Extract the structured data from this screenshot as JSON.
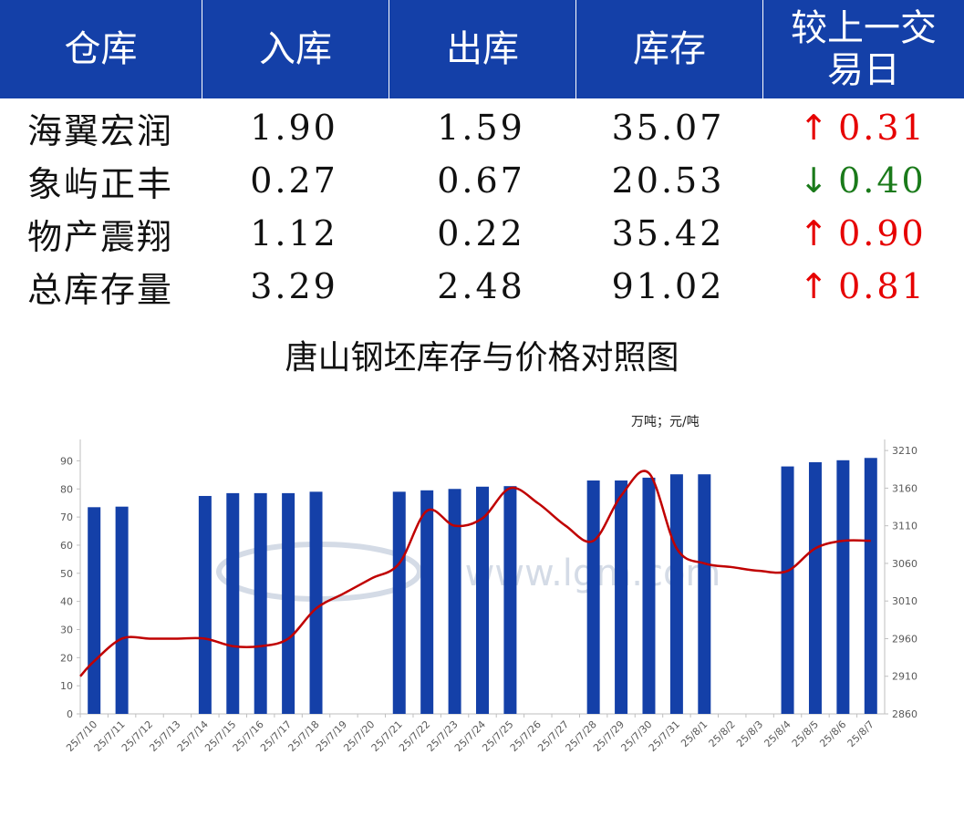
{
  "table": {
    "headers": [
      "仓库",
      "入库",
      "出库",
      "库存",
      "较上一交易日"
    ],
    "header_last_lines": [
      "较上一交",
      "易日"
    ],
    "rows": [
      {
        "name": "海翼宏润",
        "in": "1.90",
        "out": "1.59",
        "stock": "35.07",
        "arrow": "↑",
        "change": "0.31",
        "dir": "up"
      },
      {
        "name": "象屿正丰",
        "in": "0.27",
        "out": "0.67",
        "stock": "20.53",
        "arrow": "↓",
        "change": "0.40",
        "dir": "down"
      },
      {
        "name": "物产震翔",
        "in": "1.12",
        "out": "0.22",
        "stock": "35.42",
        "arrow": "↑",
        "change": "0.90",
        "dir": "up"
      },
      {
        "name": "总库存量",
        "in": "3.29",
        "out": "2.48",
        "stock": "91.02",
        "arrow": "↑",
        "change": "0.81",
        "dir": "up"
      }
    ]
  },
  "colors": {
    "header_bg": "#1440a8",
    "bar": "#1440a8",
    "line": "#c00000",
    "up": "#e60000",
    "down": "#1a7a1a"
  },
  "chart_data": {
    "type": "bar",
    "title": "唐山钢坯库存与价格对照图",
    "unit_label": "万吨；元/吨",
    "categories": [
      "25/7/10",
      "25/7/11",
      "25/7/12",
      "25/7/13",
      "25/7/14",
      "25/7/15",
      "25/7/16",
      "25/7/17",
      "25/7/18",
      "25/7/19",
      "25/7/20",
      "25/7/21",
      "25/7/22",
      "25/7/23",
      "25/7/24",
      "25/7/25",
      "25/7/26",
      "25/7/27",
      "25/7/28",
      "25/7/29",
      "25/7/30",
      "25/7/31",
      "25/8/1",
      "25/8/2",
      "25/8/3",
      "25/8/4",
      "25/8/5",
      "25/8/6",
      "25/8/7"
    ],
    "series": [
      {
        "kind": "bar",
        "axis": "left",
        "values": [
          73.5,
          73.7,
          null,
          null,
          77.5,
          78.5,
          78.5,
          78.5,
          79,
          null,
          null,
          79,
          79.5,
          80,
          80.8,
          81,
          null,
          null,
          83,
          83,
          84,
          85.2,
          85.2,
          null,
          null,
          88,
          89.5,
          90.2,
          91.02
        ]
      },
      {
        "kind": "line",
        "axis": "right",
        "values": [
          2930,
          2960,
          2960,
          2960,
          2960,
          2950,
          2950,
          2960,
          3000,
          3020,
          3040,
          3060,
          3130,
          3110,
          3120,
          3160,
          3140,
          3110,
          3090,
          3150,
          3180,
          3080,
          3060,
          3055,
          3050,
          3050,
          3080,
          3090,
          3090
        ]
      }
    ],
    "ylim_left": [
      0,
      95
    ],
    "yticks_left": [
      0,
      10,
      20,
      30,
      40,
      50,
      60,
      70,
      80,
      90
    ],
    "ylim_right": [
      2860,
      3215
    ],
    "yticks_right": [
      2860,
      2910,
      2960,
      3010,
      3060,
      3110,
      3160,
      3210
    ],
    "watermark": "www.lgm.com"
  }
}
